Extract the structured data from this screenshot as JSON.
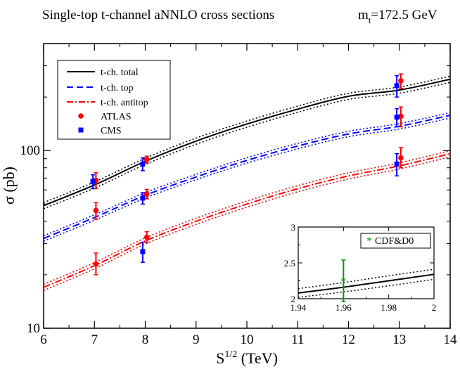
{
  "chart_data": {
    "type": "line",
    "title": "Single-top t-channel aNNLO cross sections",
    "title_mass": {
      "symbol": "m",
      "subscript": "t",
      "value": "=172.5 GeV"
    },
    "xlabel": {
      "base": "S",
      "sup": "1/2",
      "rest": " (TeV)"
    },
    "ylabel": "σ (pb)",
    "xlim": [
      6,
      14
    ],
    "ylim": [
      10,
      400
    ],
    "yscale": "log",
    "x_ticks": [
      6,
      7,
      8,
      9,
      10,
      11,
      12,
      13,
      14
    ],
    "y_tick_labels": [
      {
        "value": 10,
        "label": "10"
      },
      {
        "value": 100,
        "label": "100"
      }
    ],
    "legend_position": "top-left",
    "legend": [
      {
        "key": "total",
        "label": "t-ch. total"
      },
      {
        "key": "top",
        "label": "t-ch. top"
      },
      {
        "key": "antitop",
        "label": "t-ch. antitop"
      },
      {
        "key": "atlas",
        "label": "ATLAS"
      },
      {
        "key": "cms",
        "label": "CMS"
      }
    ],
    "series": [
      {
        "key": "total",
        "name": "t-ch. total",
        "color": "#000000",
        "dash": "solid",
        "x": [
          6,
          7,
          8,
          9,
          10,
          11,
          12,
          13,
          14
        ],
        "y": [
          49,
          64,
          87,
          113,
          141,
          171,
          202,
          219,
          252
        ],
        "band_frac": 0.04
      },
      {
        "key": "top",
        "name": "t-ch. top",
        "color": "#0000ff",
        "dash": "dash",
        "x": [
          6,
          7,
          8,
          9,
          10,
          11,
          12,
          13,
          14
        ],
        "y": [
          32,
          42,
          56,
          71,
          88,
          106,
          124,
          137,
          158
        ],
        "band_frac": 0.035
      },
      {
        "key": "antitop",
        "name": "t-ch. antitop",
        "color": "#ff0000",
        "dash": "dashdot",
        "x": [
          6,
          7,
          8,
          9,
          10,
          11,
          12,
          13,
          14
        ],
        "y": [
          17,
          22.5,
          31,
          40,
          50,
          61,
          72,
          82,
          96
        ],
        "band_frac": 0.04
      }
    ],
    "measurements": [
      {
        "exp": "ATLAS",
        "color": "#ff0000",
        "marker": "circle",
        "points": [
          {
            "x": 7.03,
            "y": 68,
            "lo": 61,
            "hi": 75
          },
          {
            "x": 8.03,
            "y": 89,
            "lo": 85,
            "hi": 93
          },
          {
            "x": 13.03,
            "y": 247,
            "lo": 224,
            "hi": 270
          },
          {
            "x": 7.03,
            "y": 46,
            "lo": 41,
            "hi": 51
          },
          {
            "x": 8.03,
            "y": 57,
            "lo": 53.5,
            "hi": 60.5
          },
          {
            "x": 13.03,
            "y": 156,
            "lo": 136,
            "hi": 176
          },
          {
            "x": 7.03,
            "y": 23,
            "lo": 20,
            "hi": 26.5
          },
          {
            "x": 8.03,
            "y": 32.5,
            "lo": 30.5,
            "hi": 35
          },
          {
            "x": 13.03,
            "y": 91,
            "lo": 80,
            "hi": 104
          }
        ]
      },
      {
        "exp": "CMS",
        "color": "#0000ff",
        "marker": "square",
        "points": [
          {
            "x": 6.97,
            "y": 67,
            "lo": 61,
            "hi": 73
          },
          {
            "x": 7.95,
            "y": 84,
            "lo": 77,
            "hi": 91
          },
          {
            "x": 12.95,
            "y": 232,
            "lo": 200,
            "hi": 264
          },
          {
            "x": 7.95,
            "y": 54,
            "lo": 50,
            "hi": 58
          },
          {
            "x": 12.95,
            "y": 154,
            "lo": 136,
            "hi": 172
          },
          {
            "x": 7.95,
            "y": 27,
            "lo": 23.5,
            "hi": 30.5
          },
          {
            "x": 12.95,
            "y": 84,
            "lo": 72,
            "hi": 96
          }
        ]
      }
    ],
    "inset": {
      "xlim": [
        1.94,
        2.0
      ],
      "ylim": [
        2.0,
        3.0
      ],
      "x_ticks": [
        1.94,
        1.96,
        1.98,
        2.0
      ],
      "x_tick_labels": [
        "1.94",
        "1.96",
        "1.98",
        "2"
      ],
      "y_ticks": [
        2,
        2.5,
        3
      ],
      "y_tick_labels": [
        "2",
        "2.5",
        "3"
      ],
      "theory": {
        "x": [
          1.94,
          1.96,
          1.98,
          2.0
        ],
        "y": [
          2.08,
          2.16,
          2.25,
          2.34
        ],
        "band": [
          0.06,
          0.065,
          0.07,
          0.07
        ],
        "color": "#000000"
      },
      "point": {
        "x": 1.96,
        "y": 2.25,
        "lo": 1.96,
        "hi": 2.54,
        "color": "#009900"
      },
      "legend": {
        "label": "CDF&D0",
        "position": "top-right"
      }
    }
  }
}
